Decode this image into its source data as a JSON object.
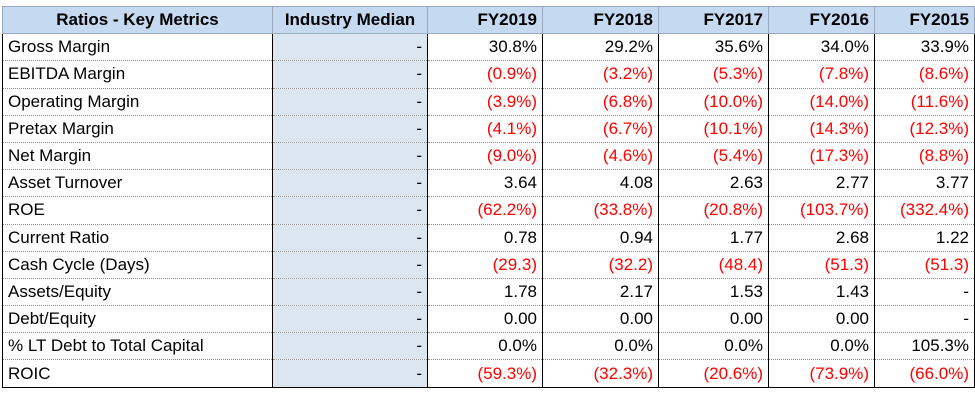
{
  "header": {
    "metric": "Ratios - Key Metrics",
    "median": "Industry Median",
    "years": [
      "FY2019",
      "FY2018",
      "FY2017",
      "FY2016",
      "FY2015"
    ]
  },
  "rows": [
    {
      "metric": "Gross Margin",
      "median": "-",
      "values": [
        "30.8%",
        "29.2%",
        "35.6%",
        "34.0%",
        "33.9%"
      ],
      "neg": [
        false,
        false,
        false,
        false,
        false
      ]
    },
    {
      "metric": "EBITDA Margin",
      "median": "-",
      "values": [
        "(0.9%)",
        "(3.2%)",
        "(5.3%)",
        "(7.8%)",
        "(8.6%)"
      ],
      "neg": [
        true,
        true,
        true,
        true,
        true
      ]
    },
    {
      "metric": "Operating Margin",
      "median": "-",
      "values": [
        "(3.9%)",
        "(6.8%)",
        "(10.0%)",
        "(14.0%)",
        "(11.6%)"
      ],
      "neg": [
        true,
        true,
        true,
        true,
        true
      ]
    },
    {
      "metric": "Pretax Margin",
      "median": "-",
      "values": [
        "(4.1%)",
        "(6.7%)",
        "(10.1%)",
        "(14.3%)",
        "(12.3%)"
      ],
      "neg": [
        true,
        true,
        true,
        true,
        true
      ]
    },
    {
      "metric": "Net Margin",
      "median": "-",
      "values": [
        "(9.0%)",
        "(4.6%)",
        "(5.4%)",
        "(17.3%)",
        "(8.8%)"
      ],
      "neg": [
        true,
        true,
        true,
        true,
        true
      ]
    },
    {
      "metric": "Asset Turnover",
      "median": "-",
      "values": [
        "3.64",
        "4.08",
        "2.63",
        "2.77",
        "3.77"
      ],
      "neg": [
        false,
        false,
        false,
        false,
        false
      ]
    },
    {
      "metric": "ROE",
      "median": "-",
      "values": [
        "(62.2%)",
        "(33.8%)",
        "(20.8%)",
        "(103.7%)",
        "(332.4%)"
      ],
      "neg": [
        true,
        true,
        true,
        true,
        true
      ]
    },
    {
      "metric": "Current Ratio",
      "median": "-",
      "values": [
        "0.78",
        "0.94",
        "1.77",
        "2.68",
        "1.22"
      ],
      "neg": [
        false,
        false,
        false,
        false,
        false
      ]
    },
    {
      "metric": "Cash Cycle (Days)",
      "median": "-",
      "values": [
        "(29.3)",
        "(32.2)",
        "(48.4)",
        "(51.3)",
        "(51.3)"
      ],
      "neg": [
        true,
        true,
        true,
        true,
        true
      ]
    },
    {
      "metric": "Assets/Equity",
      "median": "-",
      "values": [
        "1.78",
        "2.17",
        "1.53",
        "1.43",
        "-"
      ],
      "neg": [
        false,
        false,
        false,
        false,
        false
      ]
    },
    {
      "metric": "Debt/Equity",
      "median": "-",
      "values": [
        "0.00",
        "0.00",
        "0.00",
        "0.00",
        "-"
      ],
      "neg": [
        false,
        false,
        false,
        false,
        false
      ]
    },
    {
      "metric": "% LT Debt to Total Capital",
      "median": "-",
      "values": [
        "0.0%",
        "0.0%",
        "0.0%",
        "0.0%",
        "105.3%"
      ],
      "neg": [
        false,
        false,
        false,
        false,
        false
      ]
    },
    {
      "metric": "ROIC",
      "median": "-",
      "values": [
        "(59.3%)",
        "(32.3%)",
        "(20.6%)",
        "(73.9%)",
        "(66.0%)"
      ],
      "neg": [
        true,
        true,
        true,
        true,
        true
      ]
    }
  ],
  "colors": {
    "header_bg": "#c5d9f1",
    "median_bg": "#dce6f1",
    "negative": "#ff0000"
  }
}
